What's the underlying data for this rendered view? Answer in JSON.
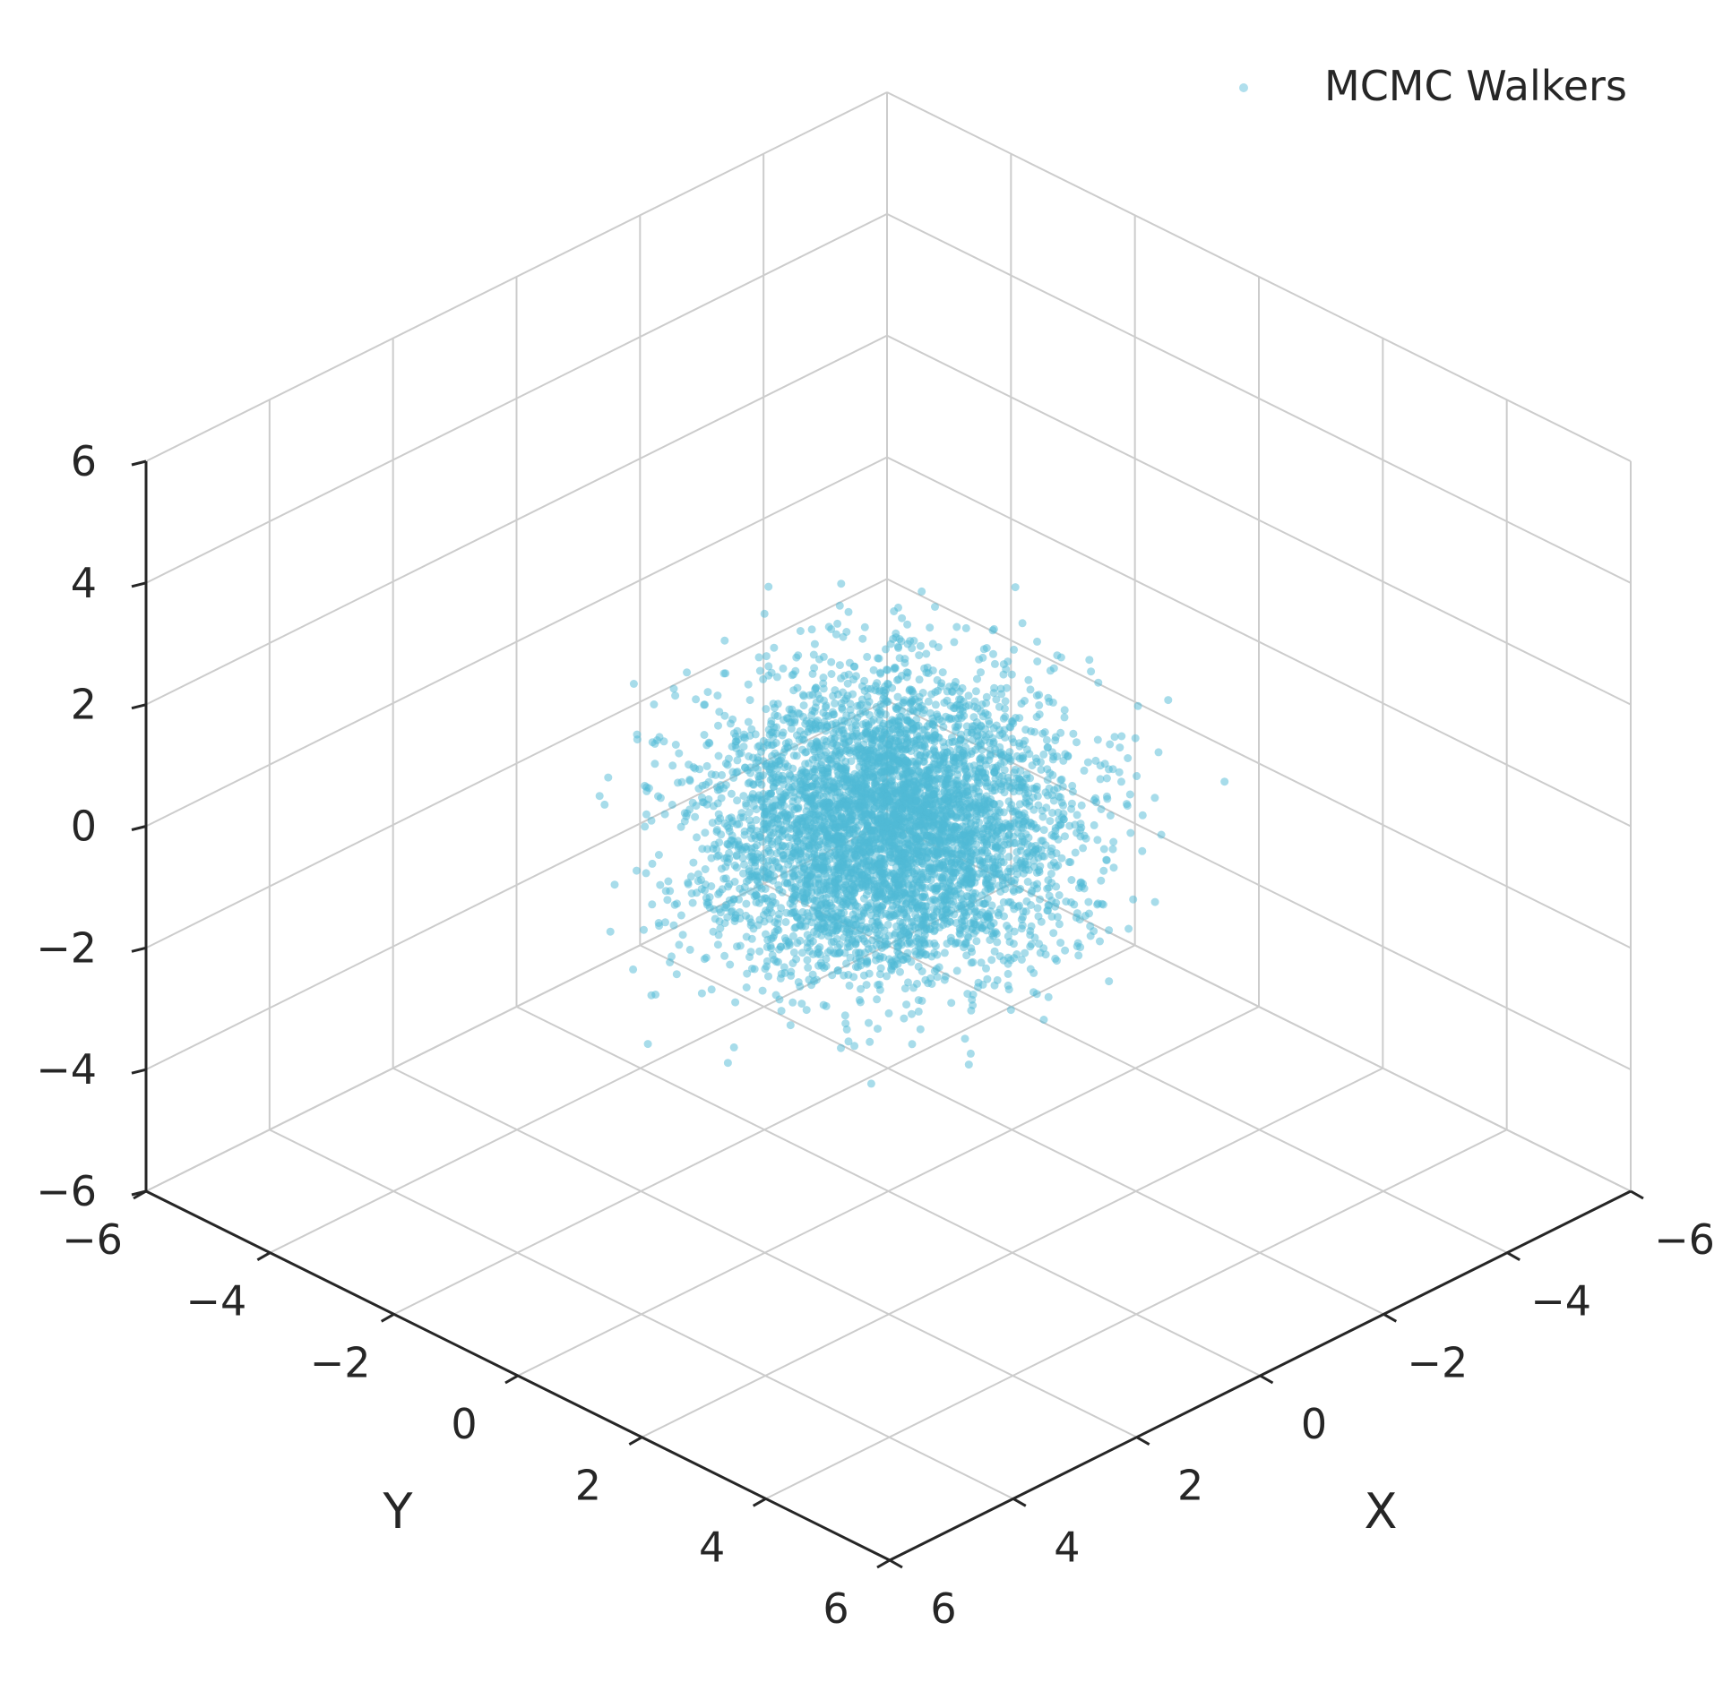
{
  "chart_data": {
    "type": "scatter",
    "projection": "3d",
    "title": "",
    "xlabel": "X",
    "ylabel": "Y",
    "zlabel": "",
    "xlim": [
      -6,
      6
    ],
    "ylim": [
      -6,
      6
    ],
    "zlim": [
      -6,
      6
    ],
    "ticks": [
      -6,
      -4,
      -2,
      0,
      2,
      4,
      6
    ],
    "tick_labels": [
      "−6",
      "−4",
      "−2",
      "0",
      "2",
      "4",
      "6"
    ],
    "grid": true,
    "legend": {
      "position": "top-right",
      "entries": [
        "MCMC Walkers"
      ]
    },
    "series": [
      {
        "name": "MCMC Walkers",
        "color": "#4fb9d6",
        "alpha": 0.5,
        "distribution": "isotropic standard normal",
        "mean": [
          0,
          0,
          0
        ],
        "std": [
          1,
          1,
          1
        ],
        "count": 5000
      }
    ]
  }
}
